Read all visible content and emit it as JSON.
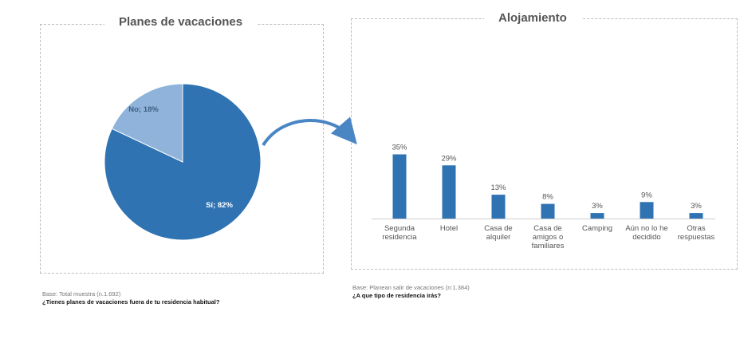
{
  "colors": {
    "primary": "#2f73b2",
    "secondary": "#8fb3da",
    "axis": "#cfcfcf"
  },
  "pie_panel": {
    "title": "Planes de vacaciones",
    "base": "Base: Total muestra (n.1.692)",
    "question": "¿Tienes planes de vacaciones fuera de tu residencia habitual?"
  },
  "bar_panel": {
    "title": "Alojamiento",
    "base": "Base: Planean salir de vacaciones (n:1.384)",
    "question": "¿A que tipo de residencia irás?"
  },
  "chart_data": [
    {
      "type": "pie",
      "title": "Planes de vacaciones",
      "slices": [
        {
          "label": "Sí; 82%",
          "value": 82,
          "color": "#2f73b2"
        },
        {
          "label": "No; 18%",
          "value": 18,
          "color": "#8fb3da"
        }
      ]
    },
    {
      "type": "bar",
      "title": "Alojamiento",
      "categories": [
        [
          "Segunda",
          "residencia"
        ],
        [
          "Hotel"
        ],
        [
          "Casa de",
          "alquiler"
        ],
        [
          "Casa de",
          "amigos o",
          "familiares"
        ],
        [
          "Camping"
        ],
        [
          "Aún no lo he",
          "decidido"
        ],
        [
          "Otras",
          "respuestas"
        ]
      ],
      "values": [
        35,
        29,
        13,
        8,
        3,
        9,
        3
      ],
      "data_labels": [
        "35%",
        "29%",
        "13%",
        "8%",
        "3%",
        "9%",
        "3%"
      ],
      "ylim": [
        0,
        40
      ],
      "grid": false,
      "color": "#2f73b2"
    }
  ]
}
